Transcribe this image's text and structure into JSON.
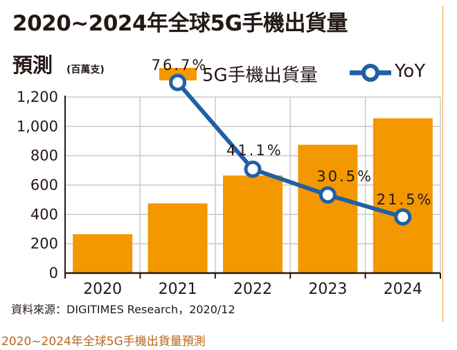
{
  "title_line1": "2020~2024年全球5G手機出貨量",
  "title_line2": "預測",
  "unit": "(百萬支)",
  "source": "資料來源：DIGITIMES Research，2020/12",
  "caption": "2020~2024年全球5G手機出貨量預測",
  "colors": {
    "bar": "#f39800",
    "line": "#1f5fa6",
    "grid": "#c9c9c9"
  },
  "chart_data": {
    "type": "bar",
    "title": "2020~2024年全球5G手機出貨量預測",
    "ylabel": "(百萬支)",
    "categories": [
      "2020",
      "2021",
      "2022",
      "2023",
      "2024"
    ],
    "ylim": [
      0,
      1200
    ],
    "yticks": [
      {
        "value": 0,
        "label": "0"
      },
      {
        "value": 200,
        "label": "200"
      },
      {
        "value": 400,
        "label": "400"
      },
      {
        "value": 600,
        "label": "600"
      },
      {
        "value": 800,
        "label": "800"
      },
      {
        "value": 1000,
        "label": "1,000"
      },
      {
        "value": 1200,
        "label": "1,200"
      }
    ],
    "series": [
      {
        "name": "5G手機出貨量",
        "type": "bar",
        "values": [
          265,
          475,
          665,
          875,
          1055
        ]
      },
      {
        "name": "YoY",
        "type": "line",
        "points": [
          {
            "category": "2021",
            "value": 76.7,
            "label": "76.7%"
          },
          {
            "category": "2022",
            "value": 41.1,
            "label": "41.1%"
          },
          {
            "category": "2023",
            "value": 30.5,
            "label": "30.5%"
          },
          {
            "category": "2024",
            "value": 21.5,
            "label": "21.5%"
          }
        ]
      }
    ],
    "legend": [
      "5G手機出貨量",
      "YoY"
    ],
    "grid": true
  }
}
